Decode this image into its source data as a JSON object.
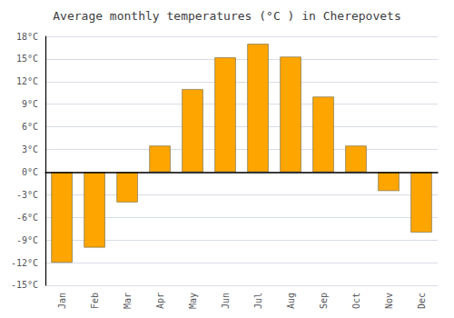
{
  "chart_data": {
    "type": "bar",
    "title": "Average monthly temperatures (°C ) in Cherepovets",
    "categories": [
      "Jan",
      "Feb",
      "Mar",
      "Apr",
      "May",
      "Jun",
      "Jul",
      "Aug",
      "Sep",
      "Oct",
      "Nov",
      "Dec"
    ],
    "values": [
      -12,
      -10,
      -4,
      3.5,
      11,
      15.2,
      17,
      15.3,
      10,
      3.5,
      -2.5,
      -8
    ],
    "color": "#FFA500",
    "ylim": [
      -15,
      18
    ],
    "yticks": [
      {
        "value": -15,
        "label": "-15°C"
      },
      {
        "value": -12,
        "label": "-12°C"
      },
      {
        "value": -9,
        "label": "-9°C"
      },
      {
        "value": -6,
        "label": "-6°C"
      },
      {
        "value": -3,
        "label": "-3°C"
      },
      {
        "value": 0,
        "label": "0°C"
      },
      {
        "value": 3,
        "label": "3°C"
      },
      {
        "value": 6,
        "label": "6°C"
      },
      {
        "value": 9,
        "label": "9°C"
      },
      {
        "value": 12,
        "label": "12°C"
      },
      {
        "value": 15,
        "label": "15°C"
      },
      {
        "value": 18,
        "label": "18°C"
      }
    ],
    "grid": true
  }
}
